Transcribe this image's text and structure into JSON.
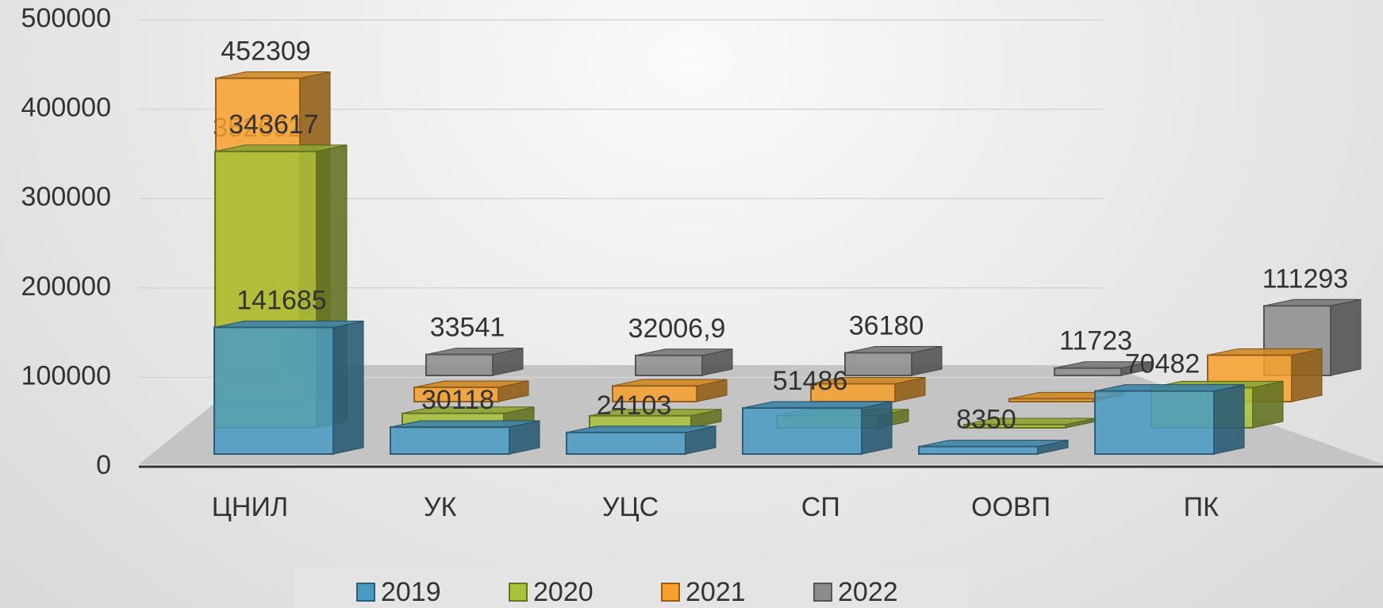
{
  "chart_data": {
    "type": "bar3d",
    "categories": [
      "ЦНИЛ",
      "УК",
      "УЦС",
      "СП",
      "ООВП",
      "ПК"
    ],
    "series": [
      {
        "name": "2019",
        "color": "#4a9bc4",
        "values": [
          141685,
          30118,
          24103,
          51486,
          8350,
          70482
        ],
        "value_labels": [
          "141685",
          "30118",
          "24103",
          "51486",
          "8350",
          "70482"
        ]
      },
      {
        "name": "2020",
        "color": "#a8c23a",
        "values": [
          343617,
          18000,
          15000,
          15000,
          4000,
          50000
        ],
        "value_labels": [
          "343617",
          null,
          null,
          null,
          null,
          null
        ]
      },
      {
        "name": "2021",
        "color": "#f7a02a",
        "values": [
          452309,
          20000,
          22000,
          25000,
          4000,
          65000
        ],
        "value_labels": [
          "452309",
          null,
          null,
          null,
          null,
          null
        ]
      },
      {
        "name": "2022",
        "color": "#8c8c8c",
        "values": [
          352692,
          33541,
          32006.9,
          36180,
          11723,
          111293
        ],
        "value_labels": [
          "352692",
          "33541",
          "32006,9",
          "36180",
          "11723",
          "111293"
        ]
      }
    ],
    "ylim": [
      0,
      500000
    ],
    "yticks": [
      0,
      100000,
      200000,
      300000,
      400000,
      500000
    ],
    "grid": true,
    "legend": "bottom"
  }
}
